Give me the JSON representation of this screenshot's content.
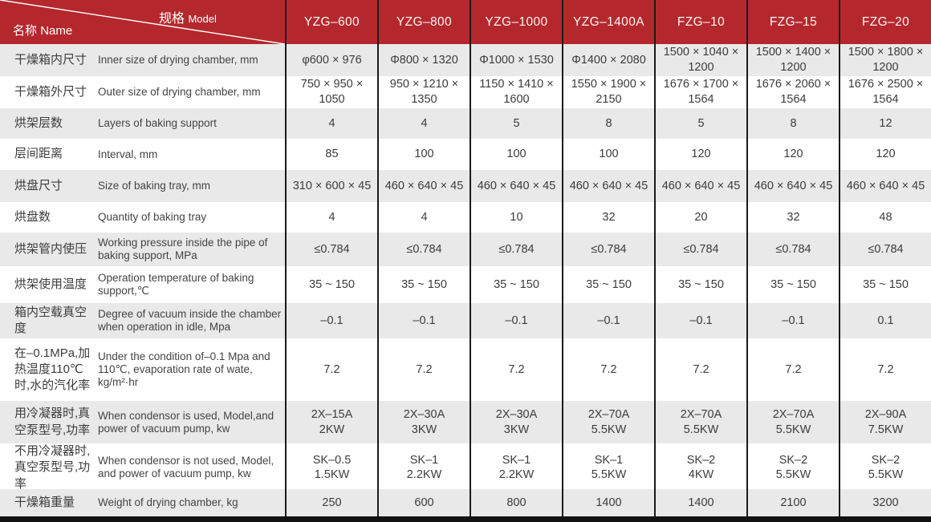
{
  "header": {
    "corner": {
      "top_cn": "规格",
      "top_en": "Model",
      "bottom_cn": "名称",
      "bottom_en": "Name"
    },
    "models": [
      "YZG–600",
      "YZG–800",
      "YZG–1000",
      "YZG–1400A",
      "FZG–10",
      "FZG–15",
      "FZG–20"
    ]
  },
  "rows": [
    {
      "cn": "干燥箱内尺寸",
      "en": "Inner size of drying chamber, mm",
      "values": [
        "φ600 × 976",
        "Φ800 × 1320",
        "Φ1000 × 1530",
        "Φ1400 × 2080",
        "1500 × 1040 × 1200",
        "1500 × 1400 × 1200",
        "1500 × 1800 × 1200"
      ]
    },
    {
      "cn": "干燥箱外尺寸",
      "en": "Outer size of drying chamber, mm",
      "values": [
        "750 × 950 × 1050",
        "950 × 1210 × 1350",
        "1150 × 1410 × 1600",
        "1550 × 1900 × 2150",
        "1676 × 1700 × 1564",
        "1676 × 2060 × 1564",
        "1676 × 2500 × 1564"
      ]
    },
    {
      "cn": "烘架层数",
      "en": "Layers of baking support",
      "values": [
        "4",
        "4",
        "5",
        "8",
        "5",
        "8",
        "12"
      ]
    },
    {
      "cn": "层间距离",
      "en": "Interval, mm",
      "values": [
        "85",
        "100",
        "100",
        "100",
        "120",
        "120",
        "120"
      ]
    },
    {
      "cn": "烘盘尺寸",
      "en": "Size of baking tray, mm",
      "values": [
        "310 × 600 × 45",
        "460 × 640 × 45",
        "460 × 640 × 45",
        "460 × 640 × 45",
        "460 × 640 × 45",
        "460 × 640 × 45",
        "460 × 640 × 45"
      ]
    },
    {
      "cn": "烘盘数",
      "en": "Quantity of baking tray",
      "values": [
        "4",
        "4",
        "10",
        "32",
        "20",
        "32",
        "48"
      ]
    },
    {
      "cn": "烘架管内使压",
      "en": "Working pressure inside the pipe of baking support, MPa",
      "values": [
        "≤0.784",
        "≤0.784",
        "≤0.784",
        "≤0.784",
        "≤0.784",
        "≤0.784",
        "≤0.784"
      ]
    },
    {
      "cn": "烘架使用温度",
      "en": "Operation temperature of baking support,℃",
      "values": [
        "35 ~ 150",
        "35 ~ 150",
        "35 ~ 150",
        "35 ~ 150",
        "35 ~ 150",
        "35 ~ 150",
        "35 ~ 150"
      ]
    },
    {
      "cn": "箱内空载真空度",
      "en": "Degree of vacuum inside the chamber when operation in idle, Mpa",
      "values": [
        "–0.1",
        "–0.1",
        "–0.1",
        "–0.1",
        "–0.1",
        "–0.1",
        "0.1"
      ]
    },
    {
      "cn": "在–0.1MPa,加热温度110℃时,水的汽化率",
      "en": "Under the condition of–0.1 Mpa and 110℃, evaporation rate of wate, kg/m²·hr",
      "values": [
        "7.2",
        "7.2",
        "7.2",
        "7.2",
        "7.2",
        "7.2",
        "7.2"
      ]
    },
    {
      "cn": "用冷凝器时,真空泵型号,功率",
      "en": "When condensor is used, Model,and power of vacuum pump, kw",
      "values": [
        "2X–15A\n2KW",
        "2X–30A\n3KW",
        "2X–30A\n3KW",
        "2X–70A\n5.5KW",
        "2X–70A\n5.5KW",
        "2X–70A\n5.5KW",
        "2X–90A\n7.5KW"
      ]
    },
    {
      "cn": "不用冷凝器时,真空泵型号,功率",
      "en": "When condensor is not used, Model, and power of vacuum pump, kw",
      "values": [
        "SK–0.5\n1.5KW",
        "SK–1\n2.2KW",
        "SK–1\n2.2KW",
        "SK–1\n5.5KW",
        "SK–2\n4KW",
        "SK–2\n5.5KW",
        "SK–2\n5.5KW"
      ]
    },
    {
      "cn": "干燥箱重量",
      "en": "Weight of drying chamber, kg",
      "values": [
        "250",
        "600",
        "800",
        "1400",
        "1400",
        "2100",
        "3200"
      ]
    }
  ],
  "colors": {
    "header_red": "#b4282d",
    "stripe_gray": "#e9e9e9",
    "divider_black": "#1b1b1b"
  }
}
